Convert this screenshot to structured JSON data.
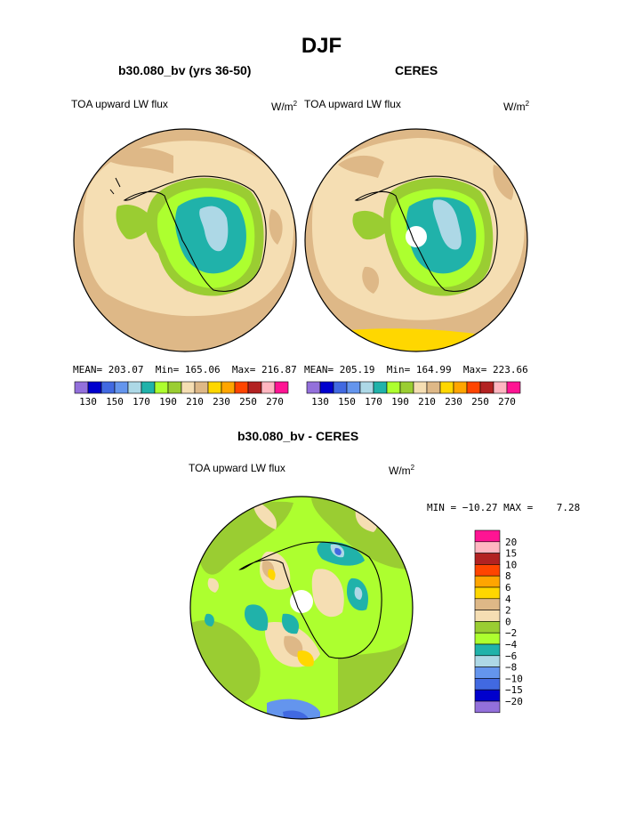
{
  "figure": {
    "title": "DJF"
  },
  "chart_data": [
    {
      "type": "heatmap",
      "projection": "south-polar-stereographic",
      "title": "b30.080_bv (yrs 36-50)",
      "left_label": "TOA upward LW flux",
      "units": "W/m",
      "units_sup": "2",
      "stats": {
        "mean_label": "MEAN=",
        "mean": "203.07",
        "min_label": "Min=",
        "min": "165.06",
        "max_label": "Max=",
        "max": "216.87"
      },
      "colorbar": {
        "orientation": "horizontal",
        "colors": [
          "#9370db",
          "#0000cd",
          "#4169e1",
          "#6495ed",
          "#add8e6",
          "#20b2aa",
          "#adff2f",
          "#9acd32",
          "#f5deb3",
          "#deb887",
          "#ffd700",
          "#ffa500",
          "#ff4500",
          "#b22222",
          "#ffb6c1",
          "#ff1493"
        ],
        "tick_labels": [
          "130",
          "150",
          "170",
          "190",
          "210",
          "230",
          "250",
          "270"
        ]
      }
    },
    {
      "type": "heatmap",
      "projection": "south-polar-stereographic",
      "title": "CERES",
      "left_label": "TOA upward LW flux",
      "units": "W/m",
      "units_sup": "2",
      "stats": {
        "mean_label": "MEAN=",
        "mean": "205.19",
        "min_label": "Min=",
        "min": "164.99",
        "max_label": "Max=",
        "max": "223.66"
      },
      "colorbar": {
        "orientation": "horizontal",
        "colors": [
          "#9370db",
          "#0000cd",
          "#4169e1",
          "#6495ed",
          "#add8e6",
          "#20b2aa",
          "#adff2f",
          "#9acd32",
          "#f5deb3",
          "#deb887",
          "#ffd700",
          "#ffa500",
          "#ff4500",
          "#b22222",
          "#ffb6c1",
          "#ff1493"
        ],
        "tick_labels": [
          "130",
          "150",
          "170",
          "190",
          "210",
          "230",
          "250",
          "270"
        ]
      }
    },
    {
      "type": "heatmap",
      "projection": "south-polar-stereographic",
      "title": "b30.080_bv - CERES",
      "left_label": "TOA upward LW flux",
      "units": "W/m",
      "units_sup": "2",
      "stats": {
        "text": "MIN = −10.27 MAX =    7.28"
      },
      "colorbar": {
        "orientation": "vertical",
        "colors_top_to_bottom": [
          "#ff1493",
          "#ffb6c1",
          "#b22222",
          "#ff4500",
          "#ffa500",
          "#ffd700",
          "#deb887",
          "#f5deb3",
          "#9acd32",
          "#adff2f",
          "#20b2aa",
          "#add8e6",
          "#6495ed",
          "#4169e1",
          "#0000cd",
          "#9370db"
        ],
        "tick_labels_top_to_bottom": [
          "20",
          "15",
          "10",
          "8",
          "6",
          "4",
          "2",
          "0",
          "−2",
          "−4",
          "−6",
          "−8",
          "−10",
          "−15",
          "−20"
        ]
      }
    }
  ],
  "colors": {
    "tan": "#deb887",
    "wheat": "#f5deb3",
    "olive": "#9acd32",
    "lime": "#adff2f",
    "teal": "#20b2aa",
    "lightblue": "#add8e6",
    "gold": "#ffd700",
    "royal": "#4169e1",
    "purple": "#9370db"
  }
}
